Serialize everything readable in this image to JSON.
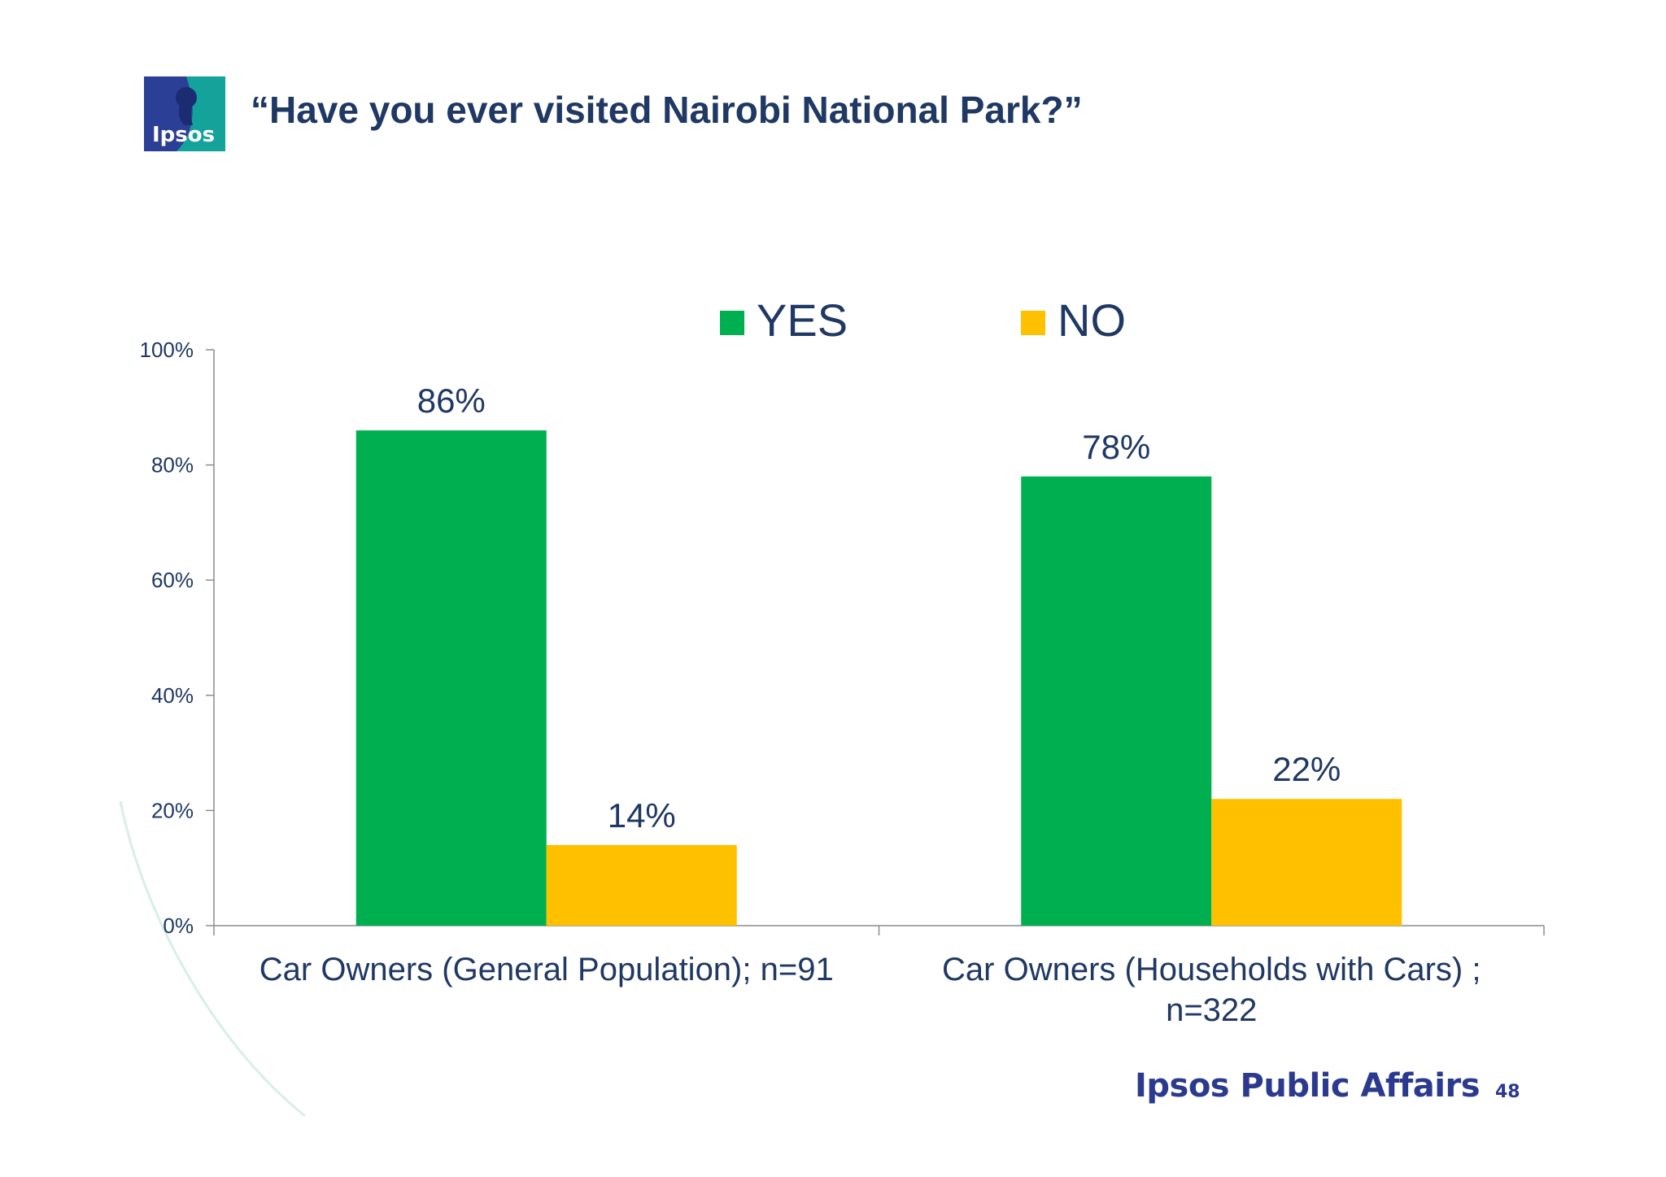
{
  "header": {
    "logo_text": "Ipsos",
    "title": "“Have you ever visited Nairobi National Park?”"
  },
  "footer": {
    "brand": "Ipsos Public Affairs",
    "page_number": "48"
  },
  "colors": {
    "yes": "#00b050",
    "no": "#ffc000",
    "text": "#1f3864",
    "axis": "#8c8c8c",
    "brand": "#2b3a8f"
  },
  "chart_data": {
    "type": "bar",
    "title": "“Have you ever visited Nairobi National Park?”",
    "categories": [
      "Car Owners (General Population); n=91",
      "Car Owners (Households with Cars) ; n=322"
    ],
    "category_lines": [
      [
        "Car Owners (General Population); n=91"
      ],
      [
        "Car Owners (Households with Cars) ;",
        "n=322"
      ]
    ],
    "series": [
      {
        "name": "YES",
        "values": [
          86,
          78
        ],
        "labels": [
          "86%",
          "78%"
        ],
        "color": "#00b050"
      },
      {
        "name": "NO",
        "values": [
          14,
          22
        ],
        "labels": [
          "14%",
          "22%"
        ],
        "color": "#ffc000"
      }
    ],
    "ylim": [
      0,
      100
    ],
    "yticks": [
      0,
      20,
      40,
      60,
      80,
      100
    ],
    "ytick_labels": [
      "0%",
      "20%",
      "40%",
      "60%",
      "80%",
      "100%"
    ],
    "grid": false,
    "legend_position": "top-center",
    "xlabel": "",
    "ylabel": ""
  }
}
